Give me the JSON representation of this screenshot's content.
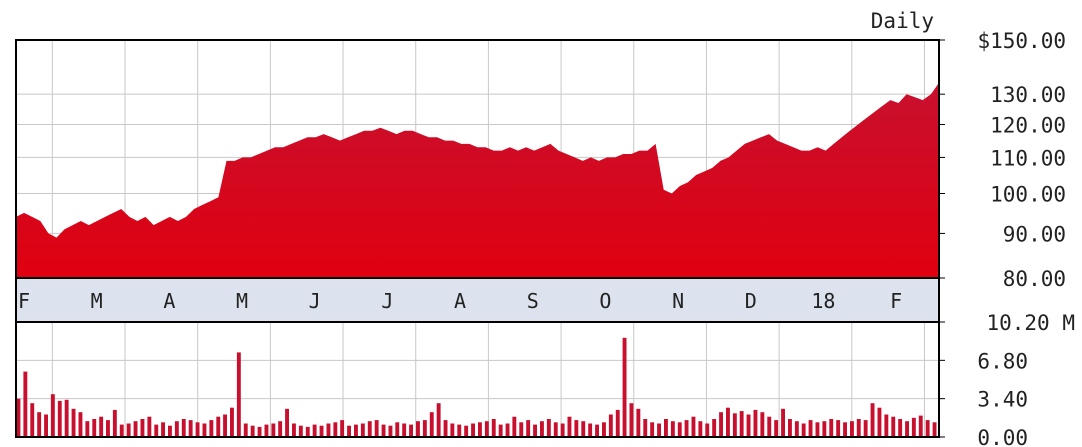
{
  "chart_data": [
    {
      "type": "area",
      "title": "Daily",
      "price_scale": "log",
      "y_tick_labels": [
        "$150.00",
        "130.00",
        "120.00",
        "110.00",
        "100.00",
        "90.00",
        "80.00"
      ],
      "y_ticks": [
        150,
        130,
        120,
        110,
        100,
        90,
        80
      ],
      "ylim": [
        80,
        150
      ],
      "month_labels": [
        "F",
        "M",
        "A",
        "M",
        "J",
        "J",
        "A",
        "S",
        "O",
        "N",
        "D",
        "18",
        "F"
      ],
      "grid": true,
      "colors": {
        "fill_top": "#c8102e",
        "fill_bottom": "#e00010",
        "grid": "#c8c8c8",
        "band": "#dde3ee"
      },
      "series": [
        {
          "values": [
            94,
            95,
            94,
            93,
            90,
            89,
            91,
            92,
            93,
            92,
            93,
            94,
            95,
            96,
            94,
            93,
            94,
            92,
            93,
            94,
            93,
            94,
            96,
            97,
            98,
            99,
            109,
            109,
            110,
            110,
            111,
            112,
            113,
            113,
            114,
            115,
            116,
            116,
            117,
            116,
            115,
            116,
            117,
            118,
            118,
            119,
            118,
            117,
            118,
            118,
            117,
            116,
            116,
            115,
            115,
            114,
            114,
            113,
            113,
            112,
            112,
            113,
            112,
            113,
            112,
            113,
            114,
            112,
            111,
            110,
            109,
            110,
            109,
            110,
            110,
            111,
            111,
            112,
            112,
            114,
            101,
            100,
            102,
            103,
            105,
            106,
            107,
            109,
            110,
            112,
            114,
            115,
            116,
            117,
            115,
            114,
            113,
            112,
            112,
            113,
            112,
            114,
            116,
            118,
            120,
            122,
            124,
            126,
            128,
            127,
            130,
            129,
            128,
            130,
            134
          ]
        }
      ]
    },
    {
      "type": "bar",
      "title": "",
      "y_tick_labels": [
        "10.20 M",
        "6.80",
        "3.40",
        "0.00"
      ],
      "y_ticks": [
        10.2,
        6.8,
        3.4,
        0
      ],
      "ylim": [
        0,
        10.2
      ],
      "grid": true,
      "colors": {
        "bar": "#c8102e"
      },
      "series": [
        {
          "values": [
            3.4,
            5.8,
            3.0,
            2.2,
            2.0,
            3.8,
            3.2,
            3.3,
            2.5,
            2.2,
            1.4,
            1.6,
            1.8,
            1.5,
            2.4,
            1.1,
            1.2,
            1.4,
            1.6,
            1.8,
            1.1,
            1.3,
            1.0,
            1.4,
            1.6,
            1.5,
            1.3,
            1.2,
            1.5,
            1.8,
            2.0,
            2.6,
            7.5,
            1.2,
            1.0,
            0.9,
            1.1,
            1.2,
            1.4,
            2.5,
            1.2,
            1.0,
            0.9,
            1.1,
            1.0,
            1.2,
            1.3,
            1.5,
            1.0,
            1.1,
            1.2,
            1.4,
            1.5,
            1.1,
            1.0,
            1.3,
            1.2,
            1.1,
            1.4,
            1.5,
            2.2,
            3.0,
            1.5,
            1.2,
            1.1,
            1.0,
            1.2,
            1.3,
            1.4,
            1.6,
            1.1,
            1.2,
            1.8,
            1.3,
            1.5,
            1.1,
            1.4,
            1.6,
            1.3,
            1.2,
            1.8,
            1.5,
            1.4,
            1.2,
            1.1,
            1.3,
            2.0,
            2.4,
            8.8,
            3.0,
            2.5,
            1.6,
            1.3,
            1.2,
            1.6,
            1.4,
            1.3,
            1.5,
            1.8,
            1.4,
            1.2,
            1.6,
            2.2,
            2.6,
            2.1,
            2.3,
            2.0,
            2.4,
            2.2,
            1.8,
            1.5,
            2.5,
            1.6,
            1.4,
            1.2,
            1.5,
            1.3,
            1.4,
            1.6,
            1.5,
            1.3,
            1.4,
            1.6,
            1.5,
            3.0,
            2.6,
            2.0,
            1.8,
            1.6,
            1.4,
            1.7,
            1.9,
            1.5,
            1.3
          ]
        }
      ]
    }
  ]
}
